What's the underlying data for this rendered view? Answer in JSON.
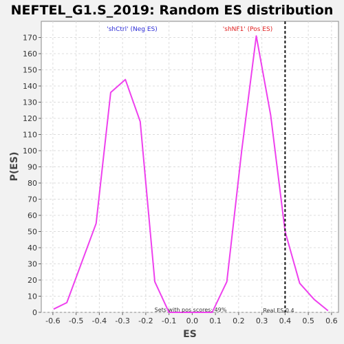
{
  "chart_data": {
    "type": "line",
    "title": "NEFTEL_G1.S_2019: Random ES distribution",
    "xlabel": "ES",
    "ylabel": "P(ES)",
    "xlim": [
      -0.65,
      0.63
    ],
    "ylim": [
      0,
      180
    ],
    "xticks": [
      "-0.6",
      "-0.5",
      "-0.4",
      "-0.3",
      "-0.2",
      "-0.1",
      "0.0",
      "0.1",
      "0.2",
      "0.3",
      "0.4",
      "0.5",
      "0.6"
    ],
    "yticks": [
      "0",
      "10",
      "20",
      "30",
      "40",
      "50",
      "60",
      "70",
      "80",
      "90",
      "100",
      "110",
      "120",
      "130",
      "140",
      "150",
      "160",
      "170"
    ],
    "grid": true,
    "series": [
      {
        "color": "#ee40ee",
        "points": [
          [
            -0.597,
            2
          ],
          [
            -0.54,
            6
          ],
          [
            -0.414,
            55
          ],
          [
            -0.351,
            136
          ],
          [
            -0.288,
            144
          ],
          [
            -0.224,
            118
          ],
          [
            -0.161,
            19
          ],
          [
            -0.1,
            0
          ],
          [
            0.086,
            0
          ],
          [
            0.149,
            19
          ],
          [
            0.213,
            100
          ],
          [
            0.276,
            171
          ],
          [
            0.338,
            122
          ],
          [
            0.4,
            50
          ],
          [
            0.463,
            18
          ],
          [
            0.525,
            8
          ],
          [
            0.585,
            1
          ]
        ]
      }
    ],
    "real_es": 0.4,
    "annotations": {
      "neg_label": "'shCtrl' (Neg ES)",
      "pos_label": "'shNF1' (Pos ES)",
      "sets_pos": "Sets with pos scores: 49%",
      "real_es_label": "Real ES 0.4"
    },
    "colors": {
      "line": "#ee40ee",
      "neg_label": "#2b2bd6",
      "pos_label": "#e02020",
      "plot_bg": "#ffffff",
      "page_bg": "#f2f2f2",
      "grid": "#dcdcdc"
    }
  }
}
